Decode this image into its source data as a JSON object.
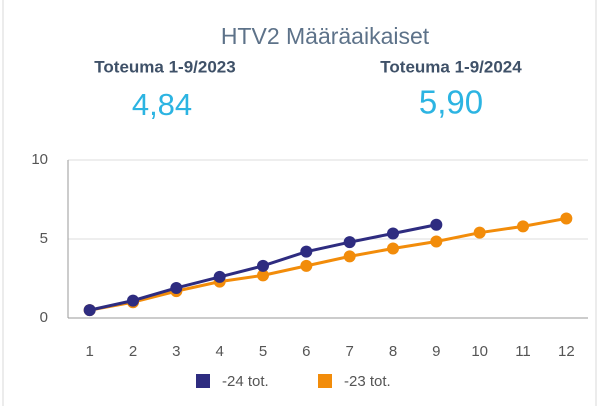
{
  "title": "HTV2 Määräaikaiset",
  "kpis": [
    {
      "label": "Toteuma 1-9/2023",
      "value": "4,84"
    },
    {
      "label": "Toteuma 1-9/2024",
      "value": "5,90"
    }
  ],
  "chart_data": {
    "type": "line",
    "categories": [
      "1",
      "2",
      "3",
      "4",
      "5",
      "6",
      "7",
      "8",
      "9",
      "10",
      "11",
      "12"
    ],
    "series": [
      {
        "name": "-24 tot.",
        "color": "#2e2c80",
        "values": [
          0.5,
          1.1,
          1.9,
          2.6,
          3.3,
          4.2,
          4.8,
          5.35,
          5.9,
          null,
          null,
          null
        ]
      },
      {
        "name": "-23 tot.",
        "color": "#f28c0a",
        "values": [
          0.5,
          1.0,
          1.7,
          2.3,
          2.7,
          3.3,
          3.9,
          4.4,
          4.84,
          5.4,
          5.8,
          6.3
        ]
      }
    ],
    "ylim": [
      0,
      10
    ],
    "yticks": [
      0,
      5,
      10
    ],
    "grid": true,
    "legend": "bottom"
  }
}
